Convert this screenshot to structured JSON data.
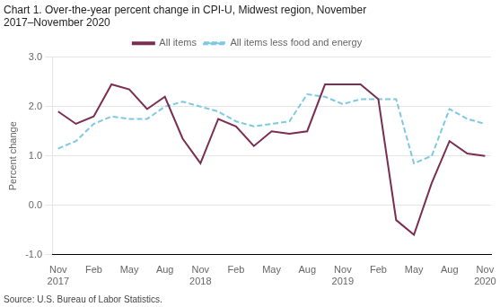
{
  "chart_data": {
    "type": "line",
    "title": [
      "Chart 1. Over-the-year percent change in CPI-U, Midwest region, November",
      "2017–November 2020"
    ],
    "source": "Source: U.S. Bureau of Labor Statistics.",
    "ylabel": "Percent change",
    "x": [
      0,
      1.5,
      3,
      4.5,
      6,
      7.5,
      9,
      10.5,
      12,
      13.5,
      15,
      16.5,
      18,
      19.5,
      21,
      22.5,
      24,
      25.5,
      27,
      28.5,
      30,
      31.5,
      33,
      34.5,
      36
    ],
    "xlim": [
      -0.5,
      36.5
    ],
    "xticks": [
      {
        "value": 0,
        "label": "Nov\n2017"
      },
      {
        "value": 3,
        "label": "Feb"
      },
      {
        "value": 6,
        "label": "May"
      },
      {
        "value": 9,
        "label": "Aug"
      },
      {
        "value": 12,
        "label": "Nov\n2018"
      },
      {
        "value": 15,
        "label": "Feb"
      },
      {
        "value": 18,
        "label": "May"
      },
      {
        "value": 21,
        "label": "Aug"
      },
      {
        "value": 24,
        "label": "Nov\n2019"
      },
      {
        "value": 27,
        "label": "Feb"
      },
      {
        "value": 30,
        "label": "May"
      },
      {
        "value": 33,
        "label": "Aug"
      },
      {
        "value": 36,
        "label": "Nov\n2020"
      }
    ],
    "ylim": [
      -1.0,
      3.0
    ],
    "yticks": [
      {
        "value": -1.0,
        "label": "-1.0"
      },
      {
        "value": 0.0,
        "label": "0.0"
      },
      {
        "value": 1.0,
        "label": "1.0"
      },
      {
        "value": 2.0,
        "label": "2.0"
      },
      {
        "value": 3.0,
        "label": "3.0"
      }
    ],
    "grid": true,
    "legend": "top",
    "series": [
      {
        "name": "All items",
        "color": "#7B2D52",
        "line_style": "solid",
        "values": [
          1.9,
          1.65,
          1.8,
          2.45,
          2.35,
          1.95,
          2.2,
          1.35,
          0.85,
          1.75,
          1.6,
          1.2,
          1.5,
          1.45,
          1.5,
          2.45,
          2.45,
          2.45,
          2.15,
          -0.3,
          -0.6,
          0.45,
          1.3,
          1.05,
          1.0
        ]
      },
      {
        "name": "All items less food and energy",
        "color": "#7EC8E3",
        "line_style": "dashed",
        "values": [
          1.15,
          1.3,
          1.65,
          1.8,
          1.75,
          1.75,
          2.0,
          2.1,
          2.0,
          1.9,
          1.7,
          1.6,
          1.65,
          1.7,
          2.25,
          2.2,
          2.05,
          2.15,
          2.15,
          2.15,
          0.85,
          1.0,
          1.95,
          1.75,
          1.65
        ]
      }
    ]
  }
}
